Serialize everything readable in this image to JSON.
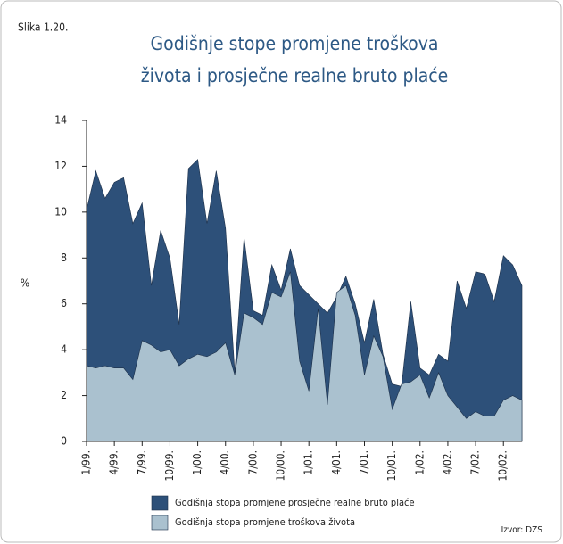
{
  "chart_data": {
    "type": "area",
    "figure_label": "Slika 1.20.",
    "title": [
      "Godišnje stope promjene troškova",
      "života i prosječne realne bruto plaće"
    ],
    "y_label": "%",
    "source": "Izvor: DZS",
    "categories": [
      "1/99.",
      null,
      null,
      "4/99.",
      null,
      null,
      "7/99.",
      null,
      null,
      "10/99.",
      null,
      null,
      "1/00.",
      null,
      null,
      "4/00.",
      null,
      null,
      "7/00.",
      null,
      null,
      "10/00.",
      null,
      null,
      "1/01.",
      null,
      null,
      "4/01.",
      null,
      null,
      "7/01.",
      null,
      null,
      "10/01.",
      null,
      null,
      "1/02.",
      null,
      null,
      "4/02.",
      null,
      null,
      "7/02.",
      null,
      null,
      "10/02.",
      null,
      null
    ],
    "series": [
      {
        "name": "Godišnja stopa promjene prosječne realne bruto plaće",
        "color": "#2d5079",
        "values": [
          10.1,
          11.8,
          10.6,
          11.3,
          11.5,
          9.5,
          10.4,
          6.8,
          9.2,
          8.0,
          5.1,
          11.9,
          12.3,
          9.5,
          11.8,
          9.3,
          3.0,
          8.9,
          5.7,
          5.5,
          7.7,
          6.6,
          8.4,
          6.8,
          6.4,
          6.0,
          5.6,
          6.3,
          7.2,
          6.0,
          4.3,
          6.2,
          3.8,
          2.5,
          2.4,
          6.1,
          3.2,
          2.9,
          3.8,
          3.5,
          7.0,
          5.8,
          7.4,
          7.3,
          6.1,
          8.1,
          7.7,
          6.8
        ]
      },
      {
        "name": "Godišnja stopa promjene troškova života",
        "color": "#aac1cf",
        "values": [
          3.3,
          3.2,
          3.3,
          3.2,
          3.2,
          2.7,
          4.4,
          4.2,
          3.9,
          4.0,
          3.3,
          3.6,
          3.8,
          3.7,
          3.9,
          4.3,
          2.9,
          5.6,
          5.4,
          5.1,
          6.5,
          6.3,
          7.4,
          3.5,
          2.2,
          5.8,
          1.6,
          6.5,
          6.8,
          5.5,
          2.9,
          4.6,
          3.7,
          1.4,
          2.5,
          2.6,
          2.9,
          1.9,
          3.0,
          2.0,
          1.5,
          1.0,
          1.3,
          1.1,
          1.1,
          1.8,
          2.0,
          1.8
        ]
      }
    ],
    "ylim": [
      0,
      14
    ],
    "yticks": [
      0,
      2,
      4,
      6,
      8,
      10,
      12,
      14
    ]
  }
}
